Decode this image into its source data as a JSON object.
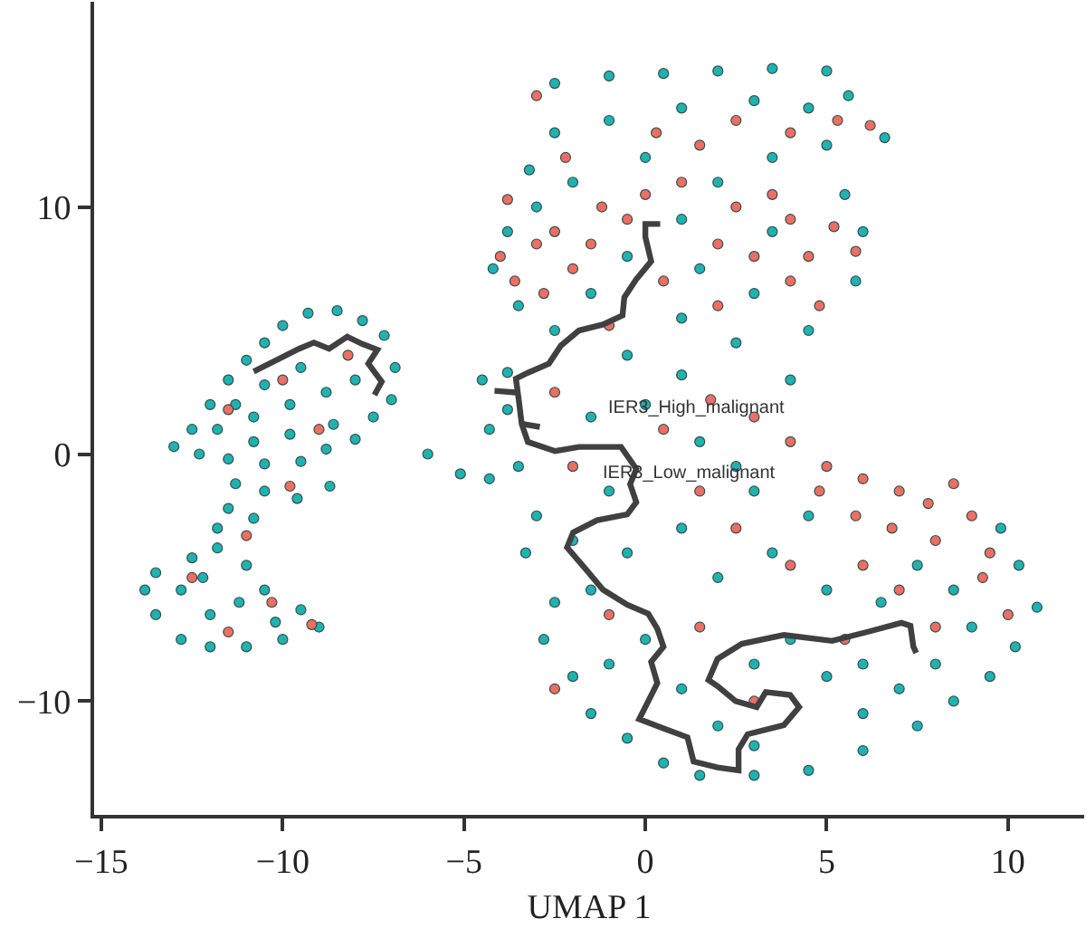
{
  "chart_data": {
    "type": "scatter",
    "xlabel": "UMAP 1",
    "xlim": [
      -15.2,
      12.1
    ],
    "ylim": [
      -14.6,
      18.3
    ],
    "xticks": [
      {
        "value": -15,
        "label": "−15"
      },
      {
        "value": -10,
        "label": "−10"
      },
      {
        "value": -5,
        "label": "−5"
      },
      0,
      5,
      10
    ],
    "yticks": [
      {
        "value": -10,
        "label": "−10"
      },
      0,
      10
    ],
    "annotations": [
      "IER3_High_malignant",
      "IER3_Low_malignant"
    ],
    "series": [
      {
        "color": "#20b2b0",
        "marker": "circle",
        "x": [
          -13.0,
          -12.5,
          -12.0,
          -11.5,
          -11.0,
          -10.5,
          -10.0,
          -9.3,
          -8.5,
          -7.8,
          -7.2,
          -6.9,
          -7.0,
          -7.5,
          -8.0,
          -8.8,
          -9.5,
          -10.5,
          -11.5,
          -12.3,
          -11.8,
          -10.8,
          -9.8,
          -8.8,
          -8.0,
          -9.5,
          -10.5,
          -11.3,
          -8.6,
          -9.8,
          -10.8,
          -11.3,
          -10.5,
          -9.6,
          -8.7,
          -11.5,
          -10.8,
          -11.8,
          -13.5,
          -13.8,
          -13.5,
          -12.8,
          -12.0,
          -11.0,
          -10.0,
          -9.0,
          -9.5,
          -10.5,
          -11.0,
          -11.8,
          -12.5,
          -12.8,
          -12.0,
          -11.2,
          -10.2,
          -12.2,
          -6.0,
          -5.1,
          -4.3,
          -2.5,
          -1.0,
          0.5,
          2.0,
          3.5,
          5.0,
          5.6,
          6.6,
          4.5,
          3.0,
          1.0,
          -1.0,
          -2.5,
          -3.2,
          -3.0,
          -3.8,
          -4.2,
          -3.5,
          -2.5,
          -1.5,
          -0.5,
          1.0,
          2.0,
          3.5,
          5.0,
          0.0,
          1.5,
          3.0,
          4.5,
          5.8,
          6.0,
          5.5,
          2.5,
          1.0,
          -0.5,
          3.5,
          -2.0,
          1.0,
          4.0,
          -4.5,
          -3.8,
          -4.3,
          -3.5,
          -3.0,
          -3.3,
          -2.5,
          -2.8,
          -2.0,
          -1.5,
          -0.5,
          0.5,
          1.5,
          3.0,
          4.5,
          6.0,
          7.5,
          8.5,
          9.5,
          10.2,
          10.8,
          10.3,
          9.8,
          -1.5,
          0.0,
          1.5,
          -1.0,
          -0.5,
          1.0,
          2.0,
          -1.5,
          0.0,
          -1.0,
          1.0,
          2.0,
          3.0,
          4.0,
          5.0,
          6.0,
          7.0,
          8.0,
          9.0,
          6.5,
          5.0,
          3.5,
          3.0,
          4.5,
          8.5,
          7.5,
          3.0,
          -2.0,
          -3.8,
          2.5,
          6.0
        ],
        "values": [
          0.3,
          1.0,
          2.0,
          3.0,
          3.8,
          4.5,
          5.2,
          5.7,
          5.8,
          5.4,
          4.8,
          3.5,
          2.2,
          1.5,
          0.6,
          0.2,
          -0.3,
          -0.4,
          -0.2,
          0.0,
          1.0,
          1.5,
          2.0,
          2.5,
          3.0,
          3.5,
          2.8,
          2.0,
          1.2,
          0.8,
          0.5,
          -1.2,
          -1.5,
          -1.8,
          -1.3,
          -2.2,
          -2.6,
          -3.0,
          -4.8,
          -5.5,
          -6.5,
          -7.5,
          -7.8,
          -7.8,
          -7.5,
          -7.0,
          -6.3,
          -5.5,
          -4.5,
          -3.8,
          -4.2,
          -5.5,
          -6.5,
          -6.0,
          -6.8,
          -5.0,
          0.0,
          -0.8,
          -1.0,
          15.0,
          15.3,
          15.4,
          15.5,
          15.6,
          15.5,
          14.5,
          12.8,
          14.0,
          14.3,
          14.0,
          13.5,
          13.0,
          11.5,
          10.0,
          9.0,
          7.5,
          6.0,
          5.0,
          6.5,
          8.0,
          9.5,
          11.0,
          12.0,
          12.5,
          12.0,
          7.5,
          6.5,
          5.0,
          7.0,
          9.0,
          10.5,
          4.5,
          5.5,
          4.0,
          9.0,
          11.0,
          3.2,
          3.0,
          3.0,
          3.3,
          1.0,
          -0.5,
          -2.5,
          -4.0,
          -6.0,
          -7.5,
          -9.0,
          -10.5,
          -11.5,
          -12.5,
          -13.0,
          -13.0,
          -12.8,
          -12.0,
          -11.0,
          -10.0,
          -9.0,
          -7.8,
          -6.2,
          -4.5,
          -3.0,
          1.5,
          2.0,
          0.5,
          -1.5,
          -4.0,
          -3.0,
          -5.0,
          -5.5,
          -7.5,
          -8.5,
          -9.5,
          -11.0,
          -8.5,
          -7.5,
          -9.0,
          -8.5,
          -9.5,
          -8.5,
          -7.0,
          -6.0,
          -5.5,
          -4.0,
          -1.5,
          -2.5,
          -5.5,
          -4.5,
          -11.8,
          -3.5,
          1.8,
          -0.5,
          -10.5
        ]
      },
      {
        "color": "#ee6e62",
        "marker": "circle",
        "x": [
          -11.5,
          -9.0,
          -10.0,
          -8.2,
          -12.5,
          -11.5,
          -10.3,
          -11.0,
          -9.2,
          -9.8,
          -4.0,
          -3.6,
          -3.0,
          -2.5,
          -2.0,
          -1.5,
          -2.8,
          -1.2,
          -2.2,
          -3.0,
          0.3,
          1.5,
          2.5,
          4.0,
          5.3,
          6.2,
          1.0,
          2.5,
          3.0,
          4.0,
          4.5,
          5.2,
          5.8,
          4.0,
          3.5,
          2.0,
          -0.5,
          0.5,
          -1.0,
          2.0,
          4.8,
          0.0,
          -3.8,
          -2.5,
          0.5,
          1.8,
          3.0,
          4.0,
          5.0,
          6.0,
          7.0,
          7.8,
          8.5,
          9.0,
          9.5,
          8.0,
          6.8,
          5.8,
          6.0,
          7.0,
          9.3,
          10.0,
          4.8,
          2.5,
          1.5,
          -2.0,
          -1.0,
          1.5,
          3.0,
          4.0,
          8.0,
          5.5,
          -2.5
        ],
        "values": [
          1.8,
          1.0,
          3.0,
          4.0,
          -5.0,
          -7.2,
          -6.0,
          -3.3,
          -6.9,
          -1.3,
          8.0,
          7.0,
          8.5,
          9.0,
          7.5,
          8.5,
          6.5,
          10.0,
          12.0,
          14.5,
          13.0,
          12.5,
          13.5,
          13.0,
          13.5,
          13.3,
          11.0,
          10.0,
          8.0,
          9.5,
          8.0,
          9.2,
          8.2,
          7.0,
          10.5,
          8.5,
          9.5,
          7.0,
          5.2,
          6.0,
          6.0,
          10.5,
          10.3,
          2.5,
          1.0,
          2.2,
          1.5,
          0.5,
          -0.5,
          -1.0,
          -1.5,
          -2.0,
          -1.2,
          -2.5,
          -4.0,
          -3.5,
          -3.0,
          -2.5,
          -4.5,
          -5.5,
          -5.0,
          -6.5,
          -1.5,
          -3.0,
          -1.5,
          -0.5,
          -6.5,
          -7.0,
          -10.0,
          -4.5,
          -7.0,
          -7.5,
          -9.5
        ]
      },
      {
        "type": "line",
        "color": "#404040",
        "x": [
          -10.8,
          -9.55,
          -9.14,
          -8.72,
          -8.22,
          -7.81,
          -7.39,
          -7.64,
          -7.27,
          -7.47
        ],
        "values": [
          3.34,
          4.26,
          4.51,
          4.26,
          4.75,
          4.46,
          4.22,
          3.66,
          2.93,
          2.39
        ]
      },
      {
        "type": "line",
        "color": "#404040",
        "x": [
          0.41,
          0.0,
          0.0,
          0.16,
          -0.25,
          -0.58,
          -0.63,
          -1.17,
          -1.83,
          -2.33,
          -2.66,
          -3.24,
          -3.57,
          -3.49,
          -3.41,
          -3.24,
          -2.49,
          -1.83,
          -0.67,
          -0.42,
          -0.25,
          -0.42,
          -0.25,
          -0.5,
          -1.33,
          -1.99,
          -2.16,
          -1.66,
          -1.17,
          -0.5,
          0.08,
          0.33,
          0.5,
          0.16,
          0.33,
          -0.17,
          0.5,
          1.16,
          1.33,
          1.99,
          2.57,
          2.57,
          2.82,
          3.82,
          4.24,
          3.99,
          3.32,
          3.07,
          2.49,
          1.99,
          1.74,
          1.99,
          2.66,
          3.82,
          5.15,
          6.14,
          7.06,
          7.31,
          7.39,
          7.47
        ],
        "values": [
          9.31,
          9.31,
          8.78,
          7.8,
          7.07,
          6.34,
          5.61,
          5.24,
          5.0,
          4.39,
          3.66,
          3.29,
          3.05,
          2.19,
          1.22,
          0.49,
          0.12,
          0.29,
          0.29,
          -0.24,
          -0.6,
          -1.22,
          -1.95,
          -2.44,
          -2.68,
          -3.17,
          -3.78,
          -4.63,
          -5.49,
          -6.1,
          -6.46,
          -7.07,
          -7.8,
          -8.41,
          -9.27,
          -10.73,
          -11.1,
          -11.46,
          -12.44,
          -12.68,
          -12.8,
          -11.95,
          -11.34,
          -10.97,
          -10.24,
          -9.75,
          -9.63,
          -10.24,
          -10.0,
          -9.39,
          -9.14,
          -8.29,
          -7.68,
          -7.32,
          -7.56,
          -7.19,
          -6.83,
          -6.95,
          -7.8,
          -8.05
        ]
      },
      {
        "type": "line",
        "color": "#404040",
        "x": [
          -4.16,
          -3.57
        ],
        "values": [
          2.56,
          2.49
        ]
      },
      {
        "type": "line",
        "color": "#404040",
        "x": [
          -3.41,
          -2.91
        ],
        "values": [
          1.22,
          1.1
        ]
      }
    ]
  }
}
